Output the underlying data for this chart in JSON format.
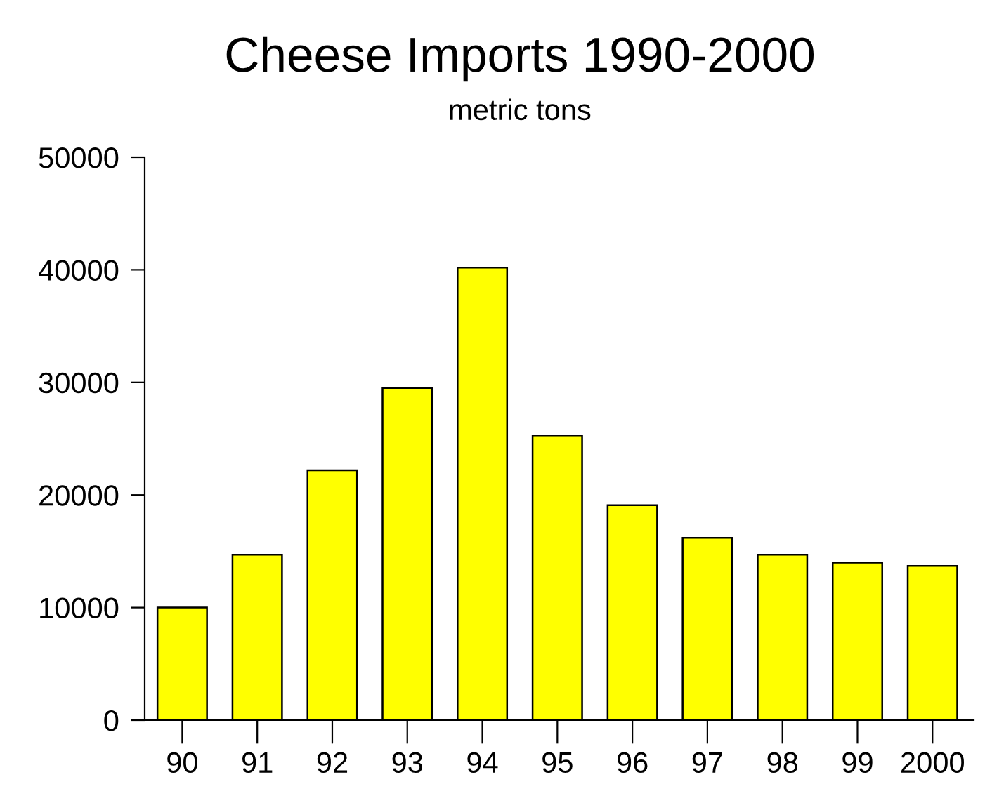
{
  "chart_data": {
    "type": "bar",
    "title": "Cheese Imports 1990-2000",
    "subtitle": "metric tons",
    "categories": [
      "90",
      "91",
      "92",
      "93",
      "94",
      "95",
      "96",
      "97",
      "98",
      "99",
      "2000"
    ],
    "values": [
      10000,
      14700,
      22200,
      29500,
      40200,
      25300,
      19100,
      16200,
      14700,
      14000,
      13700
    ],
    "color": "#ffff00",
    "ylim": [
      0,
      50000
    ],
    "yticks": [
      0,
      10000,
      20000,
      30000,
      40000,
      50000
    ],
    "grid": false
  }
}
